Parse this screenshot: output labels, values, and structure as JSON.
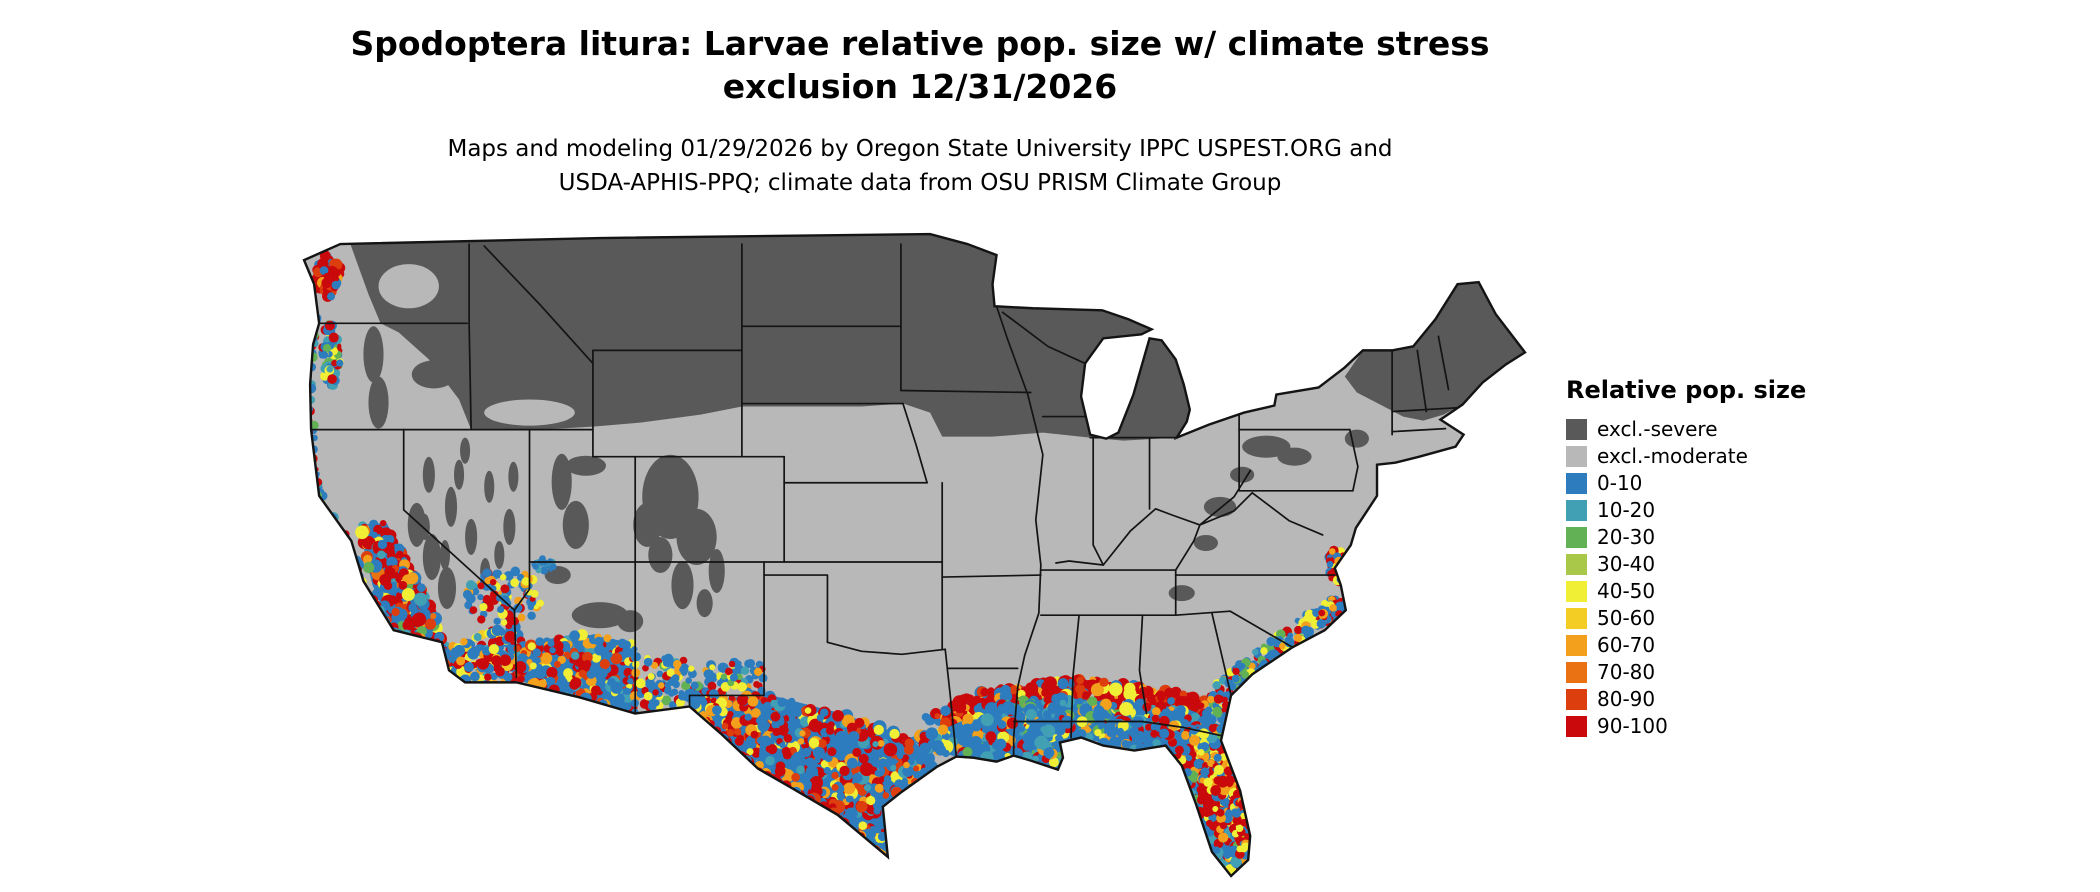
{
  "header": {
    "title_line1": "Spodoptera litura: Larvae relative pop. size w/ climate stress",
    "title_line2": "exclusion 12/31/2026",
    "subtitle_line1": "Maps and modeling 01/29/2026 by Oregon State University IPPC USPEST.ORG and",
    "subtitle_line2": "USDA-APHIS-PPQ; climate data from OSU PRISM Climate Group"
  },
  "legend": {
    "title": "Relative pop. size",
    "items": [
      {
        "label": "excl.-severe",
        "color": "#595959"
      },
      {
        "label": "excl.-moderate",
        "color": "#b8b8b8"
      },
      {
        "label": "0-10",
        "color": "#2d7cbe"
      },
      {
        "label": "10-20",
        "color": "#41a0b4"
      },
      {
        "label": "20-30",
        "color": "#62b154"
      },
      {
        "label": "30-40",
        "color": "#a9c84a"
      },
      {
        "label": "40-50",
        "color": "#f0ee35"
      },
      {
        "label": "50-60",
        "color": "#f3cd24"
      },
      {
        "label": "60-70",
        "color": "#f3a01c"
      },
      {
        "label": "70-80",
        "color": "#ea7213"
      },
      {
        "label": "80-90",
        "color": "#dd3e0e"
      },
      {
        "label": "90-100",
        "color": "#c9090b"
      }
    ]
  },
  "map": {
    "outline_color": "#141414"
  }
}
